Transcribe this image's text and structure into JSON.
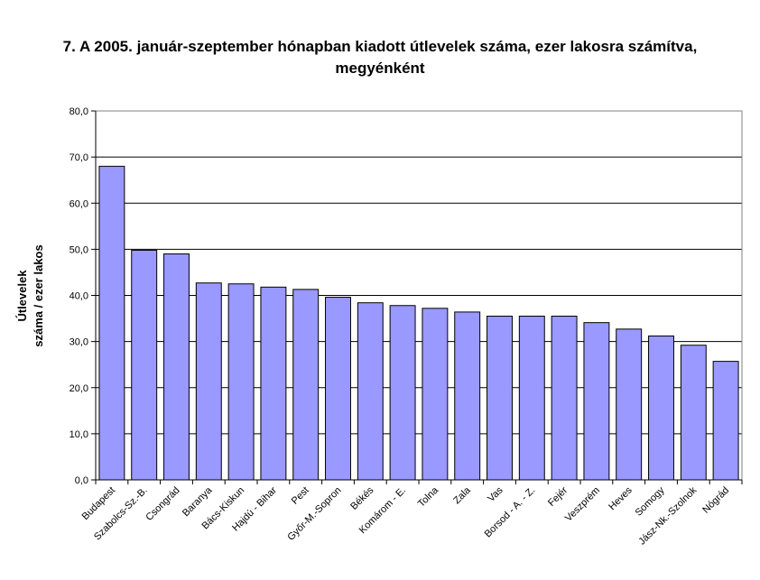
{
  "chart_data": {
    "type": "bar",
    "title_line1": "7. A 2005. január-szeptember hónapban kiadott útlevelek száma, ezer lakosra számítva,",
    "title_line2": "megyénként",
    "ylabel_line1": "Útlevelek",
    "ylabel_line2": "száma / ezer lakos",
    "xlabel": "",
    "ylim": [
      0,
      80
    ],
    "yticks": [
      "0,0",
      "10,0",
      "20,0",
      "30,0",
      "40,0",
      "50,0",
      "60,0",
      "70,0",
      "80,0"
    ],
    "grid": true,
    "legend": "none",
    "bar_color": "#9999ff",
    "categories": [
      "Budapest",
      "Szabolcs-Sz.-B.",
      "Csongrád",
      "Baranya",
      "Bács-Kiskun",
      "Hajdú - Bihar",
      "Pest",
      "Győr-M.-Sopron",
      "Békés",
      "Komárom - E.",
      "Tolna",
      "Zala",
      "Vas",
      "Borsod - A. - Z.",
      "Fejér",
      "Veszprém",
      "Heves",
      "Somogy",
      "Jász-Nk.-Szolnok",
      "Nógrád"
    ],
    "values": [
      68.0,
      49.8,
      49.0,
      42.7,
      42.5,
      41.8,
      41.3,
      39.6,
      38.4,
      37.8,
      37.2,
      36.4,
      35.5,
      35.5,
      35.5,
      34.1,
      32.7,
      31.2,
      29.2,
      25.7
    ]
  }
}
